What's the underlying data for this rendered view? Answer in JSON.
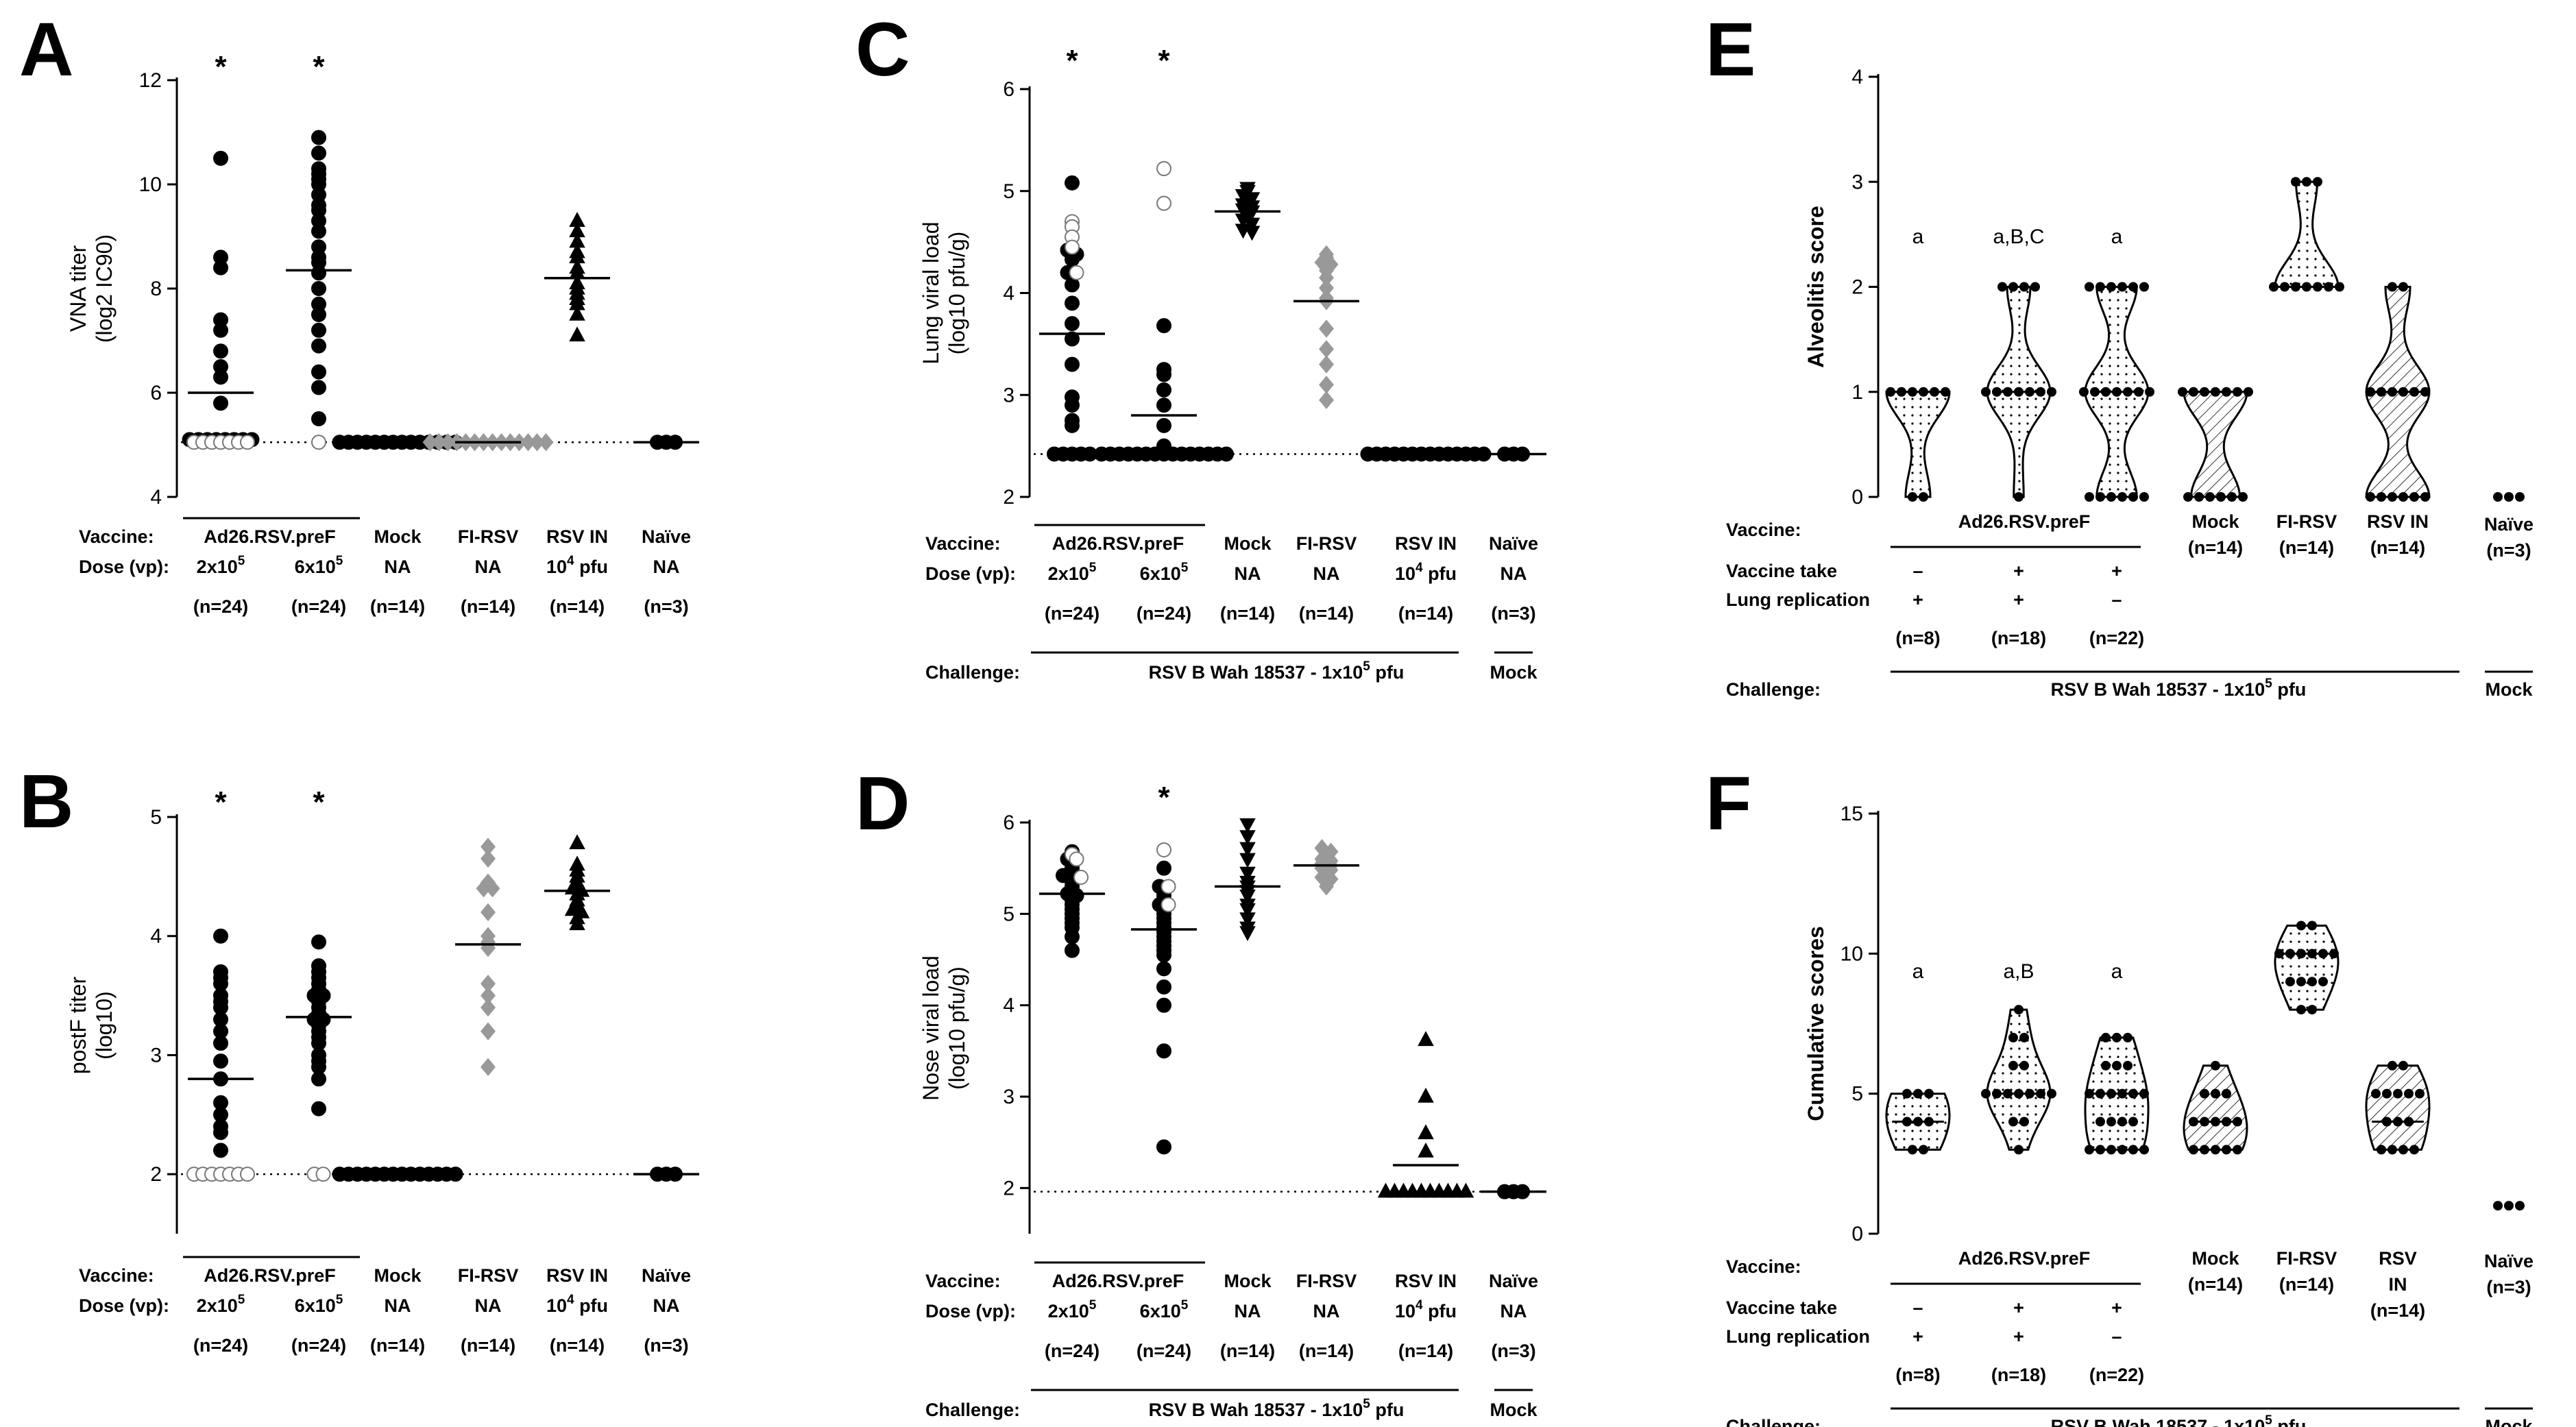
{
  "chart_data": [
    {
      "id": "A",
      "type": "scatter",
      "ylabel": [
        "VNA titer",
        "(log2  IC90)"
      ],
      "ylim": [
        4,
        12
      ],
      "yticks": [
        4,
        6,
        8,
        10,
        12
      ],
      "lod": 5.05,
      "groups": [
        {
          "name": "Ad26.RSV.preF 2x10^5",
          "marker": "circle",
          "mean": 6.0,
          "star": "*",
          "filled": [
            10.5,
            8.6,
            8.4,
            7.4,
            7.2,
            6.8,
            6.5,
            6.3,
            5.8,
            5.1,
            5.1,
            5.1,
            5.1,
            5.1,
            5.1,
            5.1,
            5.1
          ],
          "open": [
            5.05,
            5.05,
            5.05,
            5.05,
            5.05,
            5.05,
            5.05
          ]
        },
        {
          "name": "Ad26.RSV.preF 6x10^5",
          "marker": "circle",
          "mean": 8.35,
          "star": "*",
          "filled": [
            10.9,
            10.6,
            10.3,
            10.2,
            10.1,
            10.0,
            9.8,
            9.6,
            9.5,
            9.3,
            9.1,
            8.8,
            8.6,
            8.5,
            8.3,
            8.0,
            7.7,
            7.5,
            7.2,
            6.9,
            6.4,
            6.1,
            5.5
          ],
          "open": [
            5.05
          ]
        },
        {
          "name": "Mock",
          "marker": "circle",
          "mean": 5.05,
          "filled": [
            5.05,
            5.05,
            5.05,
            5.05,
            5.05,
            5.05,
            5.05,
            5.05,
            5.05,
            5.05,
            5.05,
            5.05,
            5.05,
            5.05
          ]
        },
        {
          "name": "FI-RSV",
          "marker": "diamond",
          "color": "#999999",
          "mean": 5.05,
          "filled": [
            5.05,
            5.05,
            5.05,
            5.05,
            5.05,
            5.05,
            5.05,
            5.05,
            5.05,
            5.05,
            5.05,
            5.05,
            5.05,
            5.05
          ]
        },
        {
          "name": "RSV IN",
          "marker": "triangle",
          "mean": 8.2,
          "filled": [
            9.3,
            9.1,
            8.9,
            8.7,
            8.6,
            8.4,
            8.3,
            8.1,
            8.0,
            7.9,
            7.8,
            7.7,
            7.5,
            7.1
          ]
        },
        {
          "name": "Naive",
          "marker": "circle",
          "mean": 5.05,
          "filled": [
            5.05,
            5.05,
            5.05
          ]
        }
      ]
    },
    {
      "id": "B",
      "type": "scatter",
      "ylabel": [
        "postF titer",
        "(log10)"
      ],
      "ylim": [
        1.5,
        5
      ],
      "yticks": [
        2,
        3,
        4,
        5
      ],
      "lod": 2.0,
      "groups": [
        {
          "name": "Ad26.RSV.preF 2x10^5",
          "marker": "circle",
          "mean": 2.8,
          "star": "*",
          "filled": [
            4.0,
            3.7,
            3.65,
            3.6,
            3.5,
            3.45,
            3.4,
            3.3,
            3.2,
            3.1,
            2.95,
            2.8,
            2.6,
            2.5,
            2.4,
            2.35,
            2.2
          ],
          "open": [
            2.0,
            2.0,
            2.0,
            2.0,
            2.0,
            2.0,
            2.0
          ]
        },
        {
          "name": "Ad26.RSV.preF 6x10^5",
          "marker": "circle",
          "mean": 3.32,
          "star": "*",
          "filled": [
            3.95,
            3.75,
            3.7,
            3.65,
            3.6,
            3.55,
            3.5,
            3.5,
            3.45,
            3.4,
            3.35,
            3.3,
            3.3,
            3.25,
            3.2,
            3.15,
            3.1,
            3.0,
            2.95,
            2.9,
            2.8,
            2.55
          ],
          "open": [
            2.0,
            2.0
          ]
        },
        {
          "name": "Mock",
          "marker": "circle",
          "mean": 2.0,
          "filled": [
            2.0,
            2.0,
            2.0,
            2.0,
            2.0,
            2.0,
            2.0,
            2.0,
            2.0,
            2.0,
            2.0,
            2.0,
            2.0,
            2.0
          ]
        },
        {
          "name": "FI-RSV",
          "marker": "diamond",
          "color": "#999999",
          "mean": 3.93,
          "filled": [
            4.75,
            4.65,
            4.45,
            4.4,
            4.4,
            4.2,
            4.0,
            3.95,
            3.9,
            3.6,
            3.5,
            3.4,
            3.2,
            2.9
          ]
        },
        {
          "name": "RSV IN",
          "marker": "triangle",
          "mean": 4.38,
          "filled": [
            4.78,
            4.6,
            4.55,
            4.5,
            4.45,
            4.4,
            4.38,
            4.35,
            4.3,
            4.25,
            4.22,
            4.2,
            4.15,
            4.1
          ]
        },
        {
          "name": "Naive",
          "marker": "circle",
          "mean": 2.0,
          "filled": [
            2.0,
            2.0,
            2.0
          ]
        }
      ]
    },
    {
      "id": "C",
      "type": "scatter",
      "ylabel": [
        "Lung viral load",
        "(log10 pfu/g)"
      ],
      "ylim": [
        2,
        6
      ],
      "yticks": [
        2,
        3,
        4,
        5,
        6
      ],
      "lod": 2.42,
      "groups": [
        {
          "name": "Ad26.RSV.preF 2x10^5",
          "marker": "circle",
          "mean": 3.6,
          "star": "*",
          "filled": [
            5.08,
            4.42,
            4.38,
            4.33,
            4.2,
            4.08,
            3.9,
            3.7,
            3.55,
            3.3,
            2.98,
            2.9,
            2.75,
            2.7,
            2.42,
            2.42,
            2.42,
            2.42,
            2.42
          ],
          "open": [
            4.7,
            4.65,
            4.55,
            4.45,
            4.2
          ]
        },
        {
          "name": "Ad26.RSV.preF 6x10^5",
          "marker": "circle",
          "mean": 2.8,
          "star": "*",
          "filled": [
            3.68,
            3.25,
            3.2,
            3.05,
            2.9,
            2.7,
            2.5,
            2.42,
            2.42,
            2.42,
            2.42,
            2.42,
            2.42,
            2.42,
            2.42,
            2.42,
            2.42,
            2.42,
            2.42,
            2.42,
            2.42,
            2.42
          ],
          "open": [
            5.22,
            4.88
          ]
        },
        {
          "name": "Mock",
          "marker": "triangle-down",
          "mean": 4.8,
          "filled": [
            5.03,
            5.0,
            4.96,
            4.93,
            4.9,
            4.87,
            4.85,
            4.82,
            4.8,
            4.75,
            4.72,
            4.68,
            4.62,
            4.6
          ]
        },
        {
          "name": "FI-RSV",
          "marker": "diamond",
          "color": "#999999",
          "mean": 3.92,
          "filled": [
            4.38,
            4.35,
            4.3,
            4.28,
            4.22,
            4.15,
            4.05,
            3.95,
            3.92,
            3.65,
            3.45,
            3.3,
            3.1,
            2.95
          ]
        },
        {
          "name": "RSV IN",
          "marker": "circle",
          "mean": 2.42,
          "filled": [
            2.42,
            2.42,
            2.42,
            2.42,
            2.42,
            2.42,
            2.42,
            2.42,
            2.42,
            2.42,
            2.42,
            2.42,
            2.42,
            2.42
          ]
        },
        {
          "name": "Naive",
          "marker": "circle",
          "mean": 2.42,
          "filled": [
            2.42,
            2.42,
            2.42
          ]
        }
      ]
    },
    {
      "id": "D",
      "type": "scatter",
      "ylabel": [
        "Nose viral load",
        "(log10 pfu/g)"
      ],
      "ylim": [
        1.5,
        6
      ],
      "yticks": [
        2,
        3,
        4,
        5,
        6
      ],
      "lod": 1.96,
      "groups": [
        {
          "name": "Ad26.RSV.preF 2x10^5",
          "marker": "circle",
          "mean": 5.22,
          "filled": [
            5.68,
            5.6,
            5.55,
            5.5,
            5.45,
            5.42,
            5.38,
            5.35,
            5.3,
            5.25,
            5.22,
            5.2,
            5.15,
            5.1,
            5.05,
            5.0,
            4.95,
            4.9,
            4.85,
            4.75,
            4.6
          ],
          "open": [
            5.65,
            5.6,
            5.4
          ]
        },
        {
          "name": "Ad26.RSV.preF 6x10^5",
          "marker": "circle",
          "mean": 4.83,
          "star": "*",
          "filled": [
            5.5,
            5.3,
            5.25,
            5.2,
            5.1,
            5.05,
            5.0,
            4.95,
            4.9,
            4.85,
            4.8,
            4.75,
            4.7,
            4.65,
            4.6,
            4.55,
            4.4,
            4.2,
            4.0,
            3.5,
            2.45
          ],
          "open": [
            5.7,
            5.3,
            5.1
          ]
        },
        {
          "name": "Mock",
          "marker": "triangle-down",
          "mean": 5.3,
          "filled": [
            5.98,
            5.85,
            5.72,
            5.6,
            5.45,
            5.35,
            5.3,
            5.25,
            5.2,
            5.1,
            5.05,
            4.95,
            4.85,
            4.8
          ]
        },
        {
          "name": "FI-RSV",
          "marker": "diamond",
          "color": "#999999",
          "mean": 5.53,
          "filled": [
            5.72,
            5.68,
            5.65,
            5.6,
            5.58,
            5.55,
            5.53,
            5.5,
            5.48,
            5.45,
            5.4,
            5.38,
            5.35,
            5.3
          ]
        },
        {
          "name": "RSV IN",
          "marker": "triangle",
          "mean": 2.25,
          "filled": [
            3.62,
            3.0,
            2.6,
            2.4,
            1.96,
            1.96,
            1.96,
            1.96,
            1.96,
            1.96,
            1.96,
            1.96,
            1.96,
            1.96
          ]
        },
        {
          "name": "Naive",
          "marker": "circle",
          "mean": 1.96,
          "filled": [
            1.96,
            1.96,
            1.96
          ]
        }
      ]
    },
    {
      "id": "E",
      "type": "violin",
      "ylabel": "Alveolitis score",
      "ylim": [
        0,
        4
      ],
      "yticks": [
        0,
        1,
        2,
        3,
        4
      ],
      "groups": [
        {
          "name": "Ad26.RSV.preF take- lung+",
          "n": 8,
          "letters": "a",
          "pattern": "dots",
          "dist": [
            [
              0,
              2
            ],
            [
              1,
              6
            ]
          ]
        },
        {
          "name": "Ad26.RSV.preF take+ lung+",
          "n": 18,
          "letters": "a,B,C",
          "pattern": "dots",
          "dist": [
            [
              0,
              1
            ],
            [
              1,
              13
            ],
            [
              2,
              4
            ]
          ]
        },
        {
          "name": "Ad26.RSV.preF take+ lung-",
          "n": 22,
          "letters": "a",
          "pattern": "dots",
          "dist": [
            [
              0,
              6
            ],
            [
              1,
              10
            ],
            [
              2,
              6
            ]
          ]
        },
        {
          "name": "Mock",
          "n": 14,
          "pattern": "hatch",
          "dist": [
            [
              0,
              6
            ],
            [
              1,
              8
            ]
          ]
        },
        {
          "name": "FI-RSV",
          "n": 14,
          "pattern": "dots",
          "dist": [
            [
              2,
              11
            ],
            [
              3,
              3
            ]
          ]
        },
        {
          "name": "RSV IN",
          "n": 14,
          "pattern": "hatch",
          "dist": [
            [
              0,
              6
            ],
            [
              1,
              6
            ],
            [
              2,
              2
            ]
          ]
        },
        {
          "name": "Naive",
          "n": 3,
          "pattern": "none",
          "dist": [
            [
              0,
              3
            ]
          ]
        }
      ]
    },
    {
      "id": "F",
      "type": "violin",
      "ylabel": "Cumulative scores",
      "ylim": [
        0,
        15
      ],
      "yticks": [
        0,
        5,
        10,
        15
      ],
      "groups": [
        {
          "name": "Ad26.RSV.preF take- lung+",
          "n": 8,
          "letters": "a",
          "pattern": "dots",
          "dist": [
            [
              3,
              2
            ],
            [
              4,
              3
            ],
            [
              5,
              3
            ]
          ]
        },
        {
          "name": "Ad26.RSV.preF take+ lung+",
          "n": 18,
          "letters": "a,B",
          "pattern": "dots",
          "dist": [
            [
              3,
              1
            ],
            [
              4,
              2
            ],
            [
              5,
              10
            ],
            [
              6,
              2
            ],
            [
              7,
              2
            ],
            [
              8,
              1
            ]
          ]
        },
        {
          "name": "Ad26.RSV.preF take+ lung-",
          "n": 22,
          "letters": "a",
          "pattern": "dots",
          "dist": [
            [
              3,
              6
            ],
            [
              4,
              4
            ],
            [
              5,
              6
            ],
            [
              6,
              3
            ],
            [
              7,
              3
            ]
          ]
        },
        {
          "name": "Mock",
          "n": 14,
          "pattern": "hatch",
          "dist": [
            [
              3,
              5
            ],
            [
              4,
              5
            ],
            [
              5,
              3
            ],
            [
              6,
              1
            ]
          ]
        },
        {
          "name": "FI-RSV",
          "n": 14,
          "pattern": "dots",
          "dist": [
            [
              8,
              2
            ],
            [
              9,
              4
            ],
            [
              10,
              6
            ],
            [
              11,
              2
            ]
          ]
        },
        {
          "name": "RSV IN",
          "n": 14,
          "pattern": "hatch",
          "dist": [
            [
              3,
              4
            ],
            [
              4,
              3
            ],
            [
              5,
              5
            ],
            [
              6,
              2
            ]
          ]
        },
        {
          "name": "Naive",
          "n": 3,
          "pattern": "none",
          "dist": [
            [
              1,
              3
            ]
          ]
        }
      ]
    }
  ],
  "tables": {
    "vaccine_label": "Vaccine:",
    "dose_label": "Dose (vp):",
    "challenge_label": "Challenge:",
    "take_label": "Vaccine take",
    "lung_label": "Lung replication",
    "ad26": "Ad26.RSV.preF",
    "mock": "Mock",
    "firsv": "FI-RSV",
    "rsvin": "RSV IN",
    "rsv": "RSV",
    "in": "IN",
    "naive": "Naïve",
    "dose_base": "2x10",
    "dose_base2": "6x10",
    "dose_exp": "5",
    "na": "NA",
    "rsvin_dose": "10",
    "rsvin_exp": "4",
    "rsvin_unit": " pfu",
    "n24": "(n=24)",
    "n14": "(n=14)",
    "n3": "(n=3)",
    "n8": "(n=8)",
    "n18": "(n=18)",
    "n22": "(n=22)",
    "challenge_main": "RSV B  Wah 18537 - 1x10",
    "challenge_exp": "5",
    "challenge_unit": " pfu",
    "challenge_mock": "Mock",
    "minus": "–",
    "plus": "+"
  }
}
